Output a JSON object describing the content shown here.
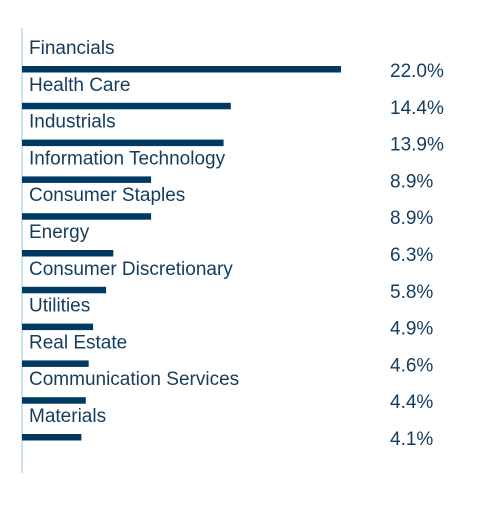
{
  "chart_data": {
    "type": "bar",
    "orientation": "horizontal",
    "categories": [
      "Financials",
      "Health Care",
      "Industrials",
      "Information Technology",
      "Consumer Staples",
      "Energy",
      "Consumer Discretionary",
      "Utilities",
      "Real Estate",
      "Communication Services",
      "Materials"
    ],
    "values": [
      22.0,
      14.4,
      13.9,
      8.9,
      8.9,
      6.3,
      5.8,
      4.9,
      4.6,
      4.4,
      4.1
    ],
    "value_labels": [
      "22.0%",
      "14.4%",
      "13.9%",
      "8.9%",
      "8.9%",
      "6.3%",
      "5.8%",
      "4.9%",
      "4.6%",
      "4.4%",
      "4.1%"
    ],
    "title": "",
    "xlabel": "",
    "ylabel": "",
    "bar_color": "#003a63",
    "axis_color": "#b9dce6",
    "text_color": "#143c5e"
  }
}
